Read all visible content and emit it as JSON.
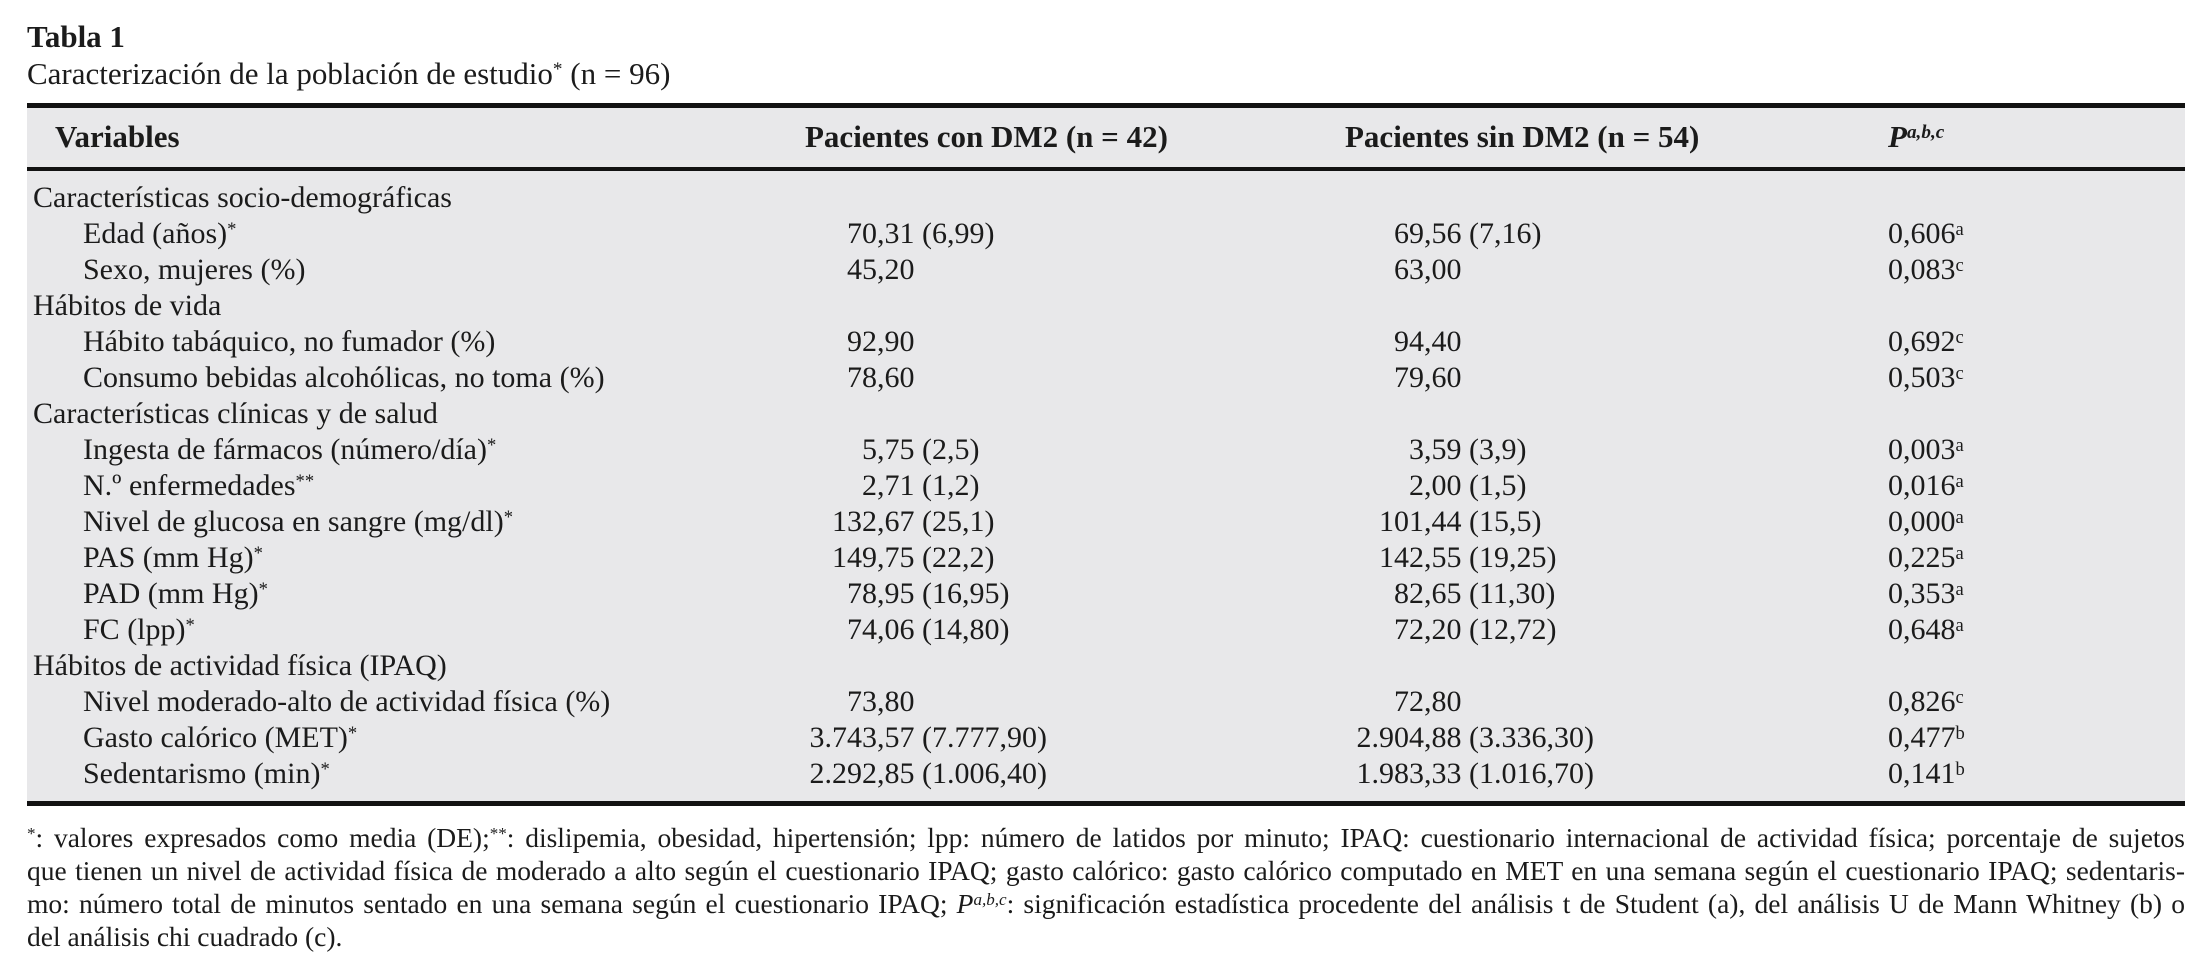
{
  "colors": {
    "band": "#e8e8ea",
    "rule": "#121212",
    "text": "#1b1b1b",
    "background": "#ffffff"
  },
  "title": "Tabla 1",
  "subtitle_segments": [
    {
      "t": "Caracterización de la población de estudio"
    },
    {
      "t": "*",
      "sup": true
    },
    {
      "t": " (n = 96)"
    }
  ],
  "table": {
    "columns": [
      {
        "label": "Variables"
      },
      {
        "label": "Pacientes con DM2 (n = 42)"
      },
      {
        "label": "Pacientes sin DM2 (n = 54)"
      },
      {
        "label": "P",
        "sup": "a,b,c"
      }
    ],
    "rows": [
      {
        "type": "section",
        "label": "Características socio-demográficas"
      },
      {
        "type": "item",
        "label": "Edad (años)",
        "label_sup": "*",
        "dm2": "70,31 (6,99)",
        "sin_dm2": "69,56 (7,16)",
        "p": "0,606",
        "p_sup": "a"
      },
      {
        "type": "item",
        "label": "Sexo, mujeres (%)",
        "label_sup": "",
        "dm2": "45,20",
        "sin_dm2": "63,00",
        "p": "0,083",
        "p_sup": "c"
      },
      {
        "type": "section",
        "label": "Hábitos de vida"
      },
      {
        "type": "item",
        "label": "Hábito tabáquico, no fumador (%)",
        "label_sup": "",
        "dm2": "92,90",
        "sin_dm2": "94,40",
        "p": "0,692",
        "p_sup": "c"
      },
      {
        "type": "item",
        "label": "Consumo bebidas alcohólicas, no toma (%)",
        "label_sup": "",
        "dm2": "78,60",
        "sin_dm2": "79,60",
        "p": "0,503",
        "p_sup": "c"
      },
      {
        "type": "section",
        "label": "Características clínicas y de salud"
      },
      {
        "type": "item",
        "label": "Ingesta de fármacos (número/día)",
        "label_sup": "*",
        "dm2": "5,75 (2,5)",
        "sin_dm2": "3,59 (3,9)",
        "p": "0,003",
        "p_sup": "a"
      },
      {
        "type": "item",
        "label": "N.º enfermedades",
        "label_sup": "**",
        "dm2": "2,71 (1,2)",
        "sin_dm2": "2,00 (1,5)",
        "p": "0,016",
        "p_sup": "a"
      },
      {
        "type": "item",
        "label": "Nivel de glucosa en sangre (mg/dl)",
        "label_sup": "*",
        "dm2": "132,67 (25,1)",
        "sin_dm2": "101,44 (15,5)",
        "p": "0,000",
        "p_sup": "a"
      },
      {
        "type": "item",
        "label": "PAS (mm Hg)",
        "label_sup": "*",
        "dm2": "149,75 (22,2)",
        "sin_dm2": "142,55 (19,25)",
        "p": "0,225",
        "p_sup": "a"
      },
      {
        "type": "item",
        "label": "PAD (mm Hg)",
        "label_sup": "*",
        "dm2": "78,95 (16,95)",
        "sin_dm2": "82,65 (11,30)",
        "p": "0,353",
        "p_sup": "a"
      },
      {
        "type": "item",
        "label": "FC (lpp)",
        "label_sup": "*",
        "dm2": "74,06 (14,80)",
        "sin_dm2": "72,20 (12,72)",
        "p": "0,648",
        "p_sup": "a"
      },
      {
        "type": "section",
        "label": "Hábitos de actividad física (IPAQ)"
      },
      {
        "type": "item",
        "label": "Nivel moderado-alto de actividad física (%)",
        "label_sup": "",
        "dm2": "73,80",
        "sin_dm2": "72,80",
        "p": "0,826",
        "p_sup": "c"
      },
      {
        "type": "item",
        "label": "Gasto calórico (MET)",
        "label_sup": "*",
        "dm2": "3.743,57 (7.777,90)",
        "sin_dm2": "2.904,88 (3.336,30)",
        "p": "0,477",
        "p_sup": "b"
      },
      {
        "type": "item",
        "label": "Sedentarismo (min)",
        "label_sup": "*",
        "dm2": "2.292,85 (1.006,40)",
        "sin_dm2": "1.983,33 (1.016,70)",
        "p": "0,141",
        "p_sup": "b"
      }
    ]
  },
  "footnote": {
    "lines": [
      [
        {
          "t": "*",
          "sup": true
        },
        {
          "t": ": valores expresados como media (DE);"
        },
        {
          "t": "**",
          "sup": true
        },
        {
          "t": ": dislipemia, obesidad, hipertensión; lpp: número de latidos por minuto; IPAQ: cuestionario internacional de actividad física; porcentaje de sujetos"
        }
      ],
      [
        {
          "t": "que tienen un nivel de actividad física de moderado a alto según el cuestionario IPAQ; gasto calórico: gasto calórico computado en MET en una semana según el cuestionario IPAQ; sedentaris-"
        }
      ],
      [
        {
          "t": "mo: número total de minutos sentado en una semana según el cuestionario IPAQ; "
        },
        {
          "t": "P",
          "italic": true
        },
        {
          "t": "a,b,c",
          "sup": true,
          "italic": true
        },
        {
          "t": ": significación estadística procedente del análisis t de Student (a), del análisis U de Mann Whitney (b) o"
        }
      ],
      [
        {
          "t": "del análisis chi cuadrado (c)."
        }
      ]
    ]
  }
}
